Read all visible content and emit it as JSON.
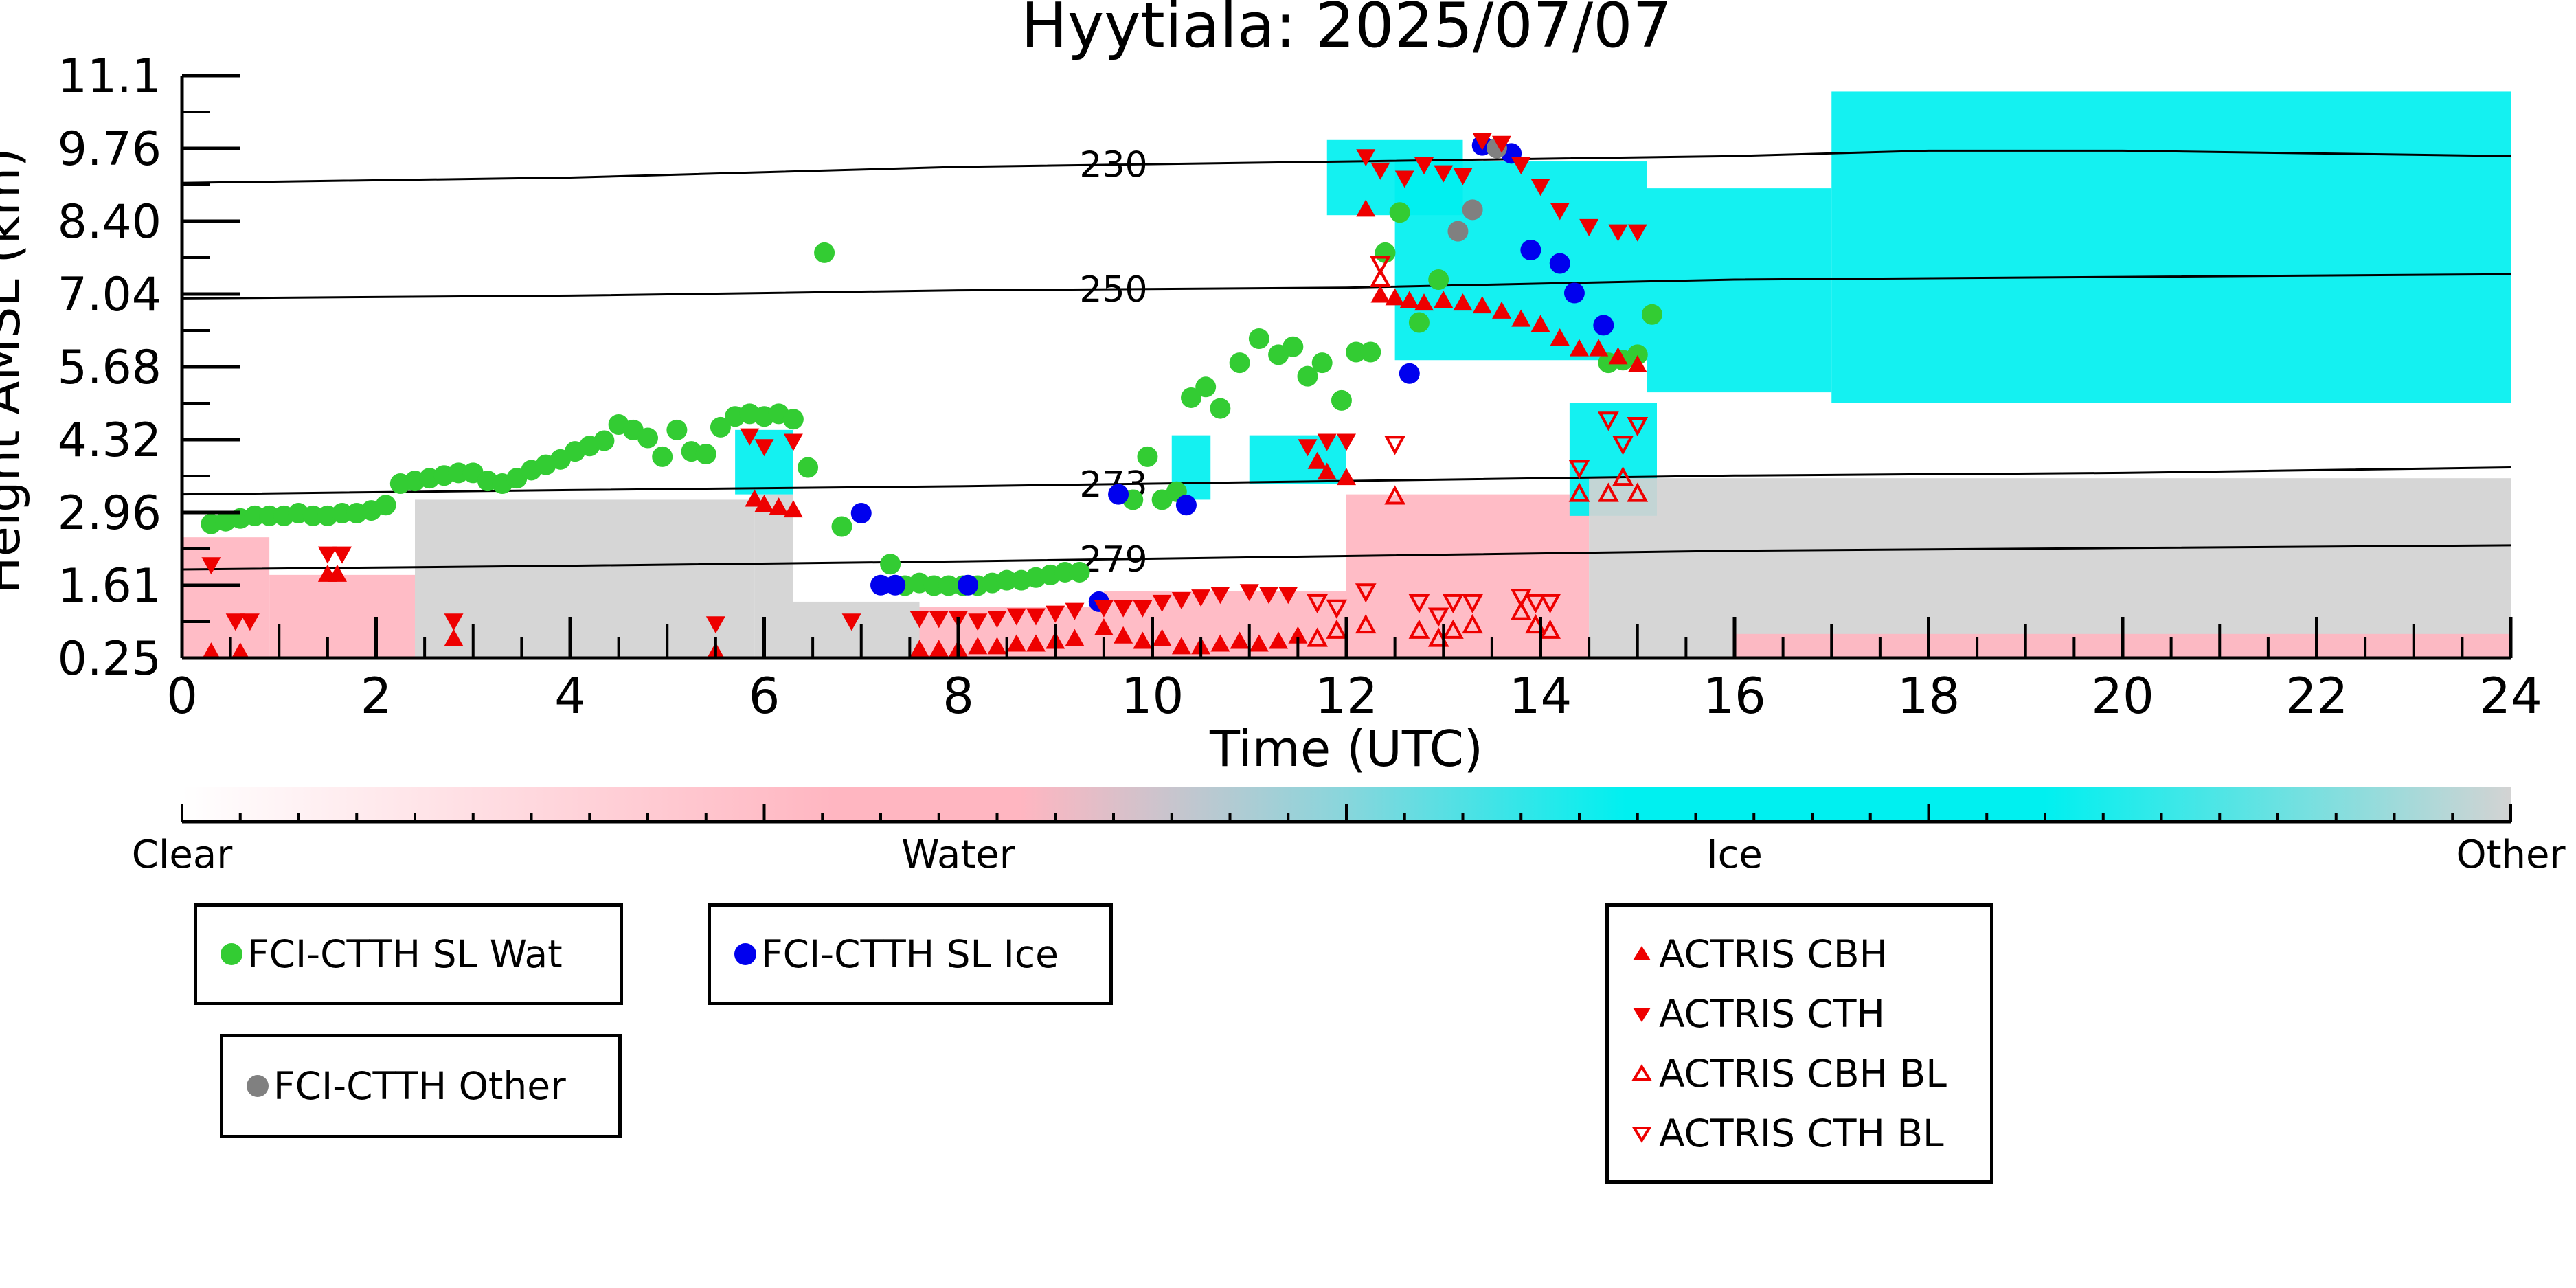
{
  "chart_data": {
    "type": "scatter",
    "title": "Hyytiala: 2025/07/07",
    "xlabel": "Time (UTC)",
    "ylabel": "Height AMSL (km)",
    "xlim": [
      0,
      24
    ],
    "ylim": [
      0.25,
      11.1
    ],
    "x_ticks": [
      "0",
      "2",
      "4",
      "6",
      "8",
      "10",
      "12",
      "14",
      "16",
      "18",
      "20",
      "22",
      "24"
    ],
    "y_ticks": [
      "0.25",
      "1.61",
      "2.96",
      "4.32",
      "5.68",
      "7.04",
      "8.40",
      "9.76",
      "11.1"
    ],
    "colorbar": {
      "labels": [
        "Clear",
        "Water",
        "Ice",
        "Other"
      ],
      "colors": [
        "#ffffff",
        "#ffb6c1",
        "#00f0f0",
        "#d3d3d3"
      ]
    },
    "isotherms": [
      {
        "label": "230",
        "x": [
          0,
          4,
          8,
          12,
          16,
          18,
          20,
          24
        ],
        "y": [
          9.1,
          9.2,
          9.4,
          9.5,
          9.6,
          9.7,
          9.7,
          9.6
        ]
      },
      {
        "label": "250",
        "x": [
          0,
          4,
          8,
          12,
          16,
          20,
          24
        ],
        "y": [
          6.95,
          7.0,
          7.1,
          7.15,
          7.3,
          7.35,
          7.4
        ]
      },
      {
        "label": "273",
        "x": [
          0,
          4,
          8,
          12,
          16,
          20,
          24
        ],
        "y": [
          3.3,
          3.38,
          3.45,
          3.55,
          3.65,
          3.7,
          3.8
        ]
      },
      {
        "label": "279",
        "x": [
          0,
          4,
          8,
          12,
          16,
          20,
          24
        ],
        "y": [
          1.9,
          1.97,
          2.05,
          2.15,
          2.25,
          2.3,
          2.35
        ]
      }
    ],
    "cloud_regions": [
      {
        "class": "Water",
        "x": [
          0.0,
          0.9
        ],
        "y": [
          0.25,
          2.5
        ]
      },
      {
        "class": "Water",
        "x": [
          0.9,
          2.4
        ],
        "y": [
          0.25,
          1.8
        ]
      },
      {
        "class": "Other",
        "x": [
          2.4,
          5.9
        ],
        "y": [
          0.25,
          3.2
        ]
      },
      {
        "class": "Other",
        "x": [
          5.9,
          6.3
        ],
        "y": [
          0.25,
          3.3
        ]
      },
      {
        "class": "Ice",
        "x": [
          5.7,
          6.3
        ],
        "y": [
          3.3,
          4.5
        ]
      },
      {
        "class": "Other",
        "x": [
          6.3,
          7.6
        ],
        "y": [
          0.25,
          1.3
        ]
      },
      {
        "class": "Water",
        "x": [
          7.6,
          9.5
        ],
        "y": [
          0.25,
          1.2
        ]
      },
      {
        "class": "Water",
        "x": [
          9.5,
          12.0
        ],
        "y": [
          0.25,
          1.5
        ]
      },
      {
        "class": "Ice",
        "x": [
          10.2,
          10.6
        ],
        "y": [
          3.2,
          4.4
        ]
      },
      {
        "class": "Ice",
        "x": [
          11.0,
          12.0
        ],
        "y": [
          3.5,
          4.4
        ]
      },
      {
        "class": "Water",
        "x": [
          12.0,
          14.5
        ],
        "y": [
          0.25,
          3.3
        ]
      },
      {
        "class": "Ice",
        "x": [
          11.8,
          13.2
        ],
        "y": [
          8.5,
          9.9
        ]
      },
      {
        "class": "Ice",
        "x": [
          12.5,
          15.1
        ],
        "y": [
          5.8,
          9.5
        ]
      },
      {
        "class": "Ice",
        "x": [
          15.1,
          17.0
        ],
        "y": [
          5.2,
          9.0
        ]
      },
      {
        "class": "Ice",
        "x": [
          17.0,
          24.0
        ],
        "y": [
          5.0,
          10.8
        ]
      },
      {
        "class": "Ice",
        "x": [
          14.3,
          15.2
        ],
        "y": [
          2.9,
          5.0
        ]
      },
      {
        "class": "Other",
        "x": [
          14.5,
          24.0
        ],
        "y": [
          0.25,
          3.6
        ]
      },
      {
        "class": "Water",
        "x": [
          16.0,
          24.0
        ],
        "y": [
          0.25,
          0.7
        ]
      }
    ],
    "series": [
      {
        "name": "FCI-CTTH SL Wat",
        "color": "#33cc33",
        "marker": "circle",
        "x": [
          0.3,
          0.45,
          0.6,
          0.75,
          0.9,
          1.05,
          1.2,
          1.35,
          1.5,
          1.65,
          1.8,
          1.95,
          2.1,
          2.25,
          2.4,
          2.55,
          2.7,
          2.85,
          3.0,
          3.15,
          3.3,
          3.45,
          3.6,
          3.75,
          3.9,
          4.05,
          4.2,
          4.35,
          4.5,
          4.65,
          4.8,
          4.95,
          5.1,
          5.25,
          5.4,
          5.55,
          5.7,
          5.85,
          6.0,
          6.15,
          6.3,
          6.45,
          6.62,
          6.8,
          7.3,
          7.45,
          7.6,
          7.75,
          7.9,
          8.05,
          8.2,
          8.35,
          8.5,
          8.65,
          8.8,
          8.95,
          9.1,
          9.25,
          9.8,
          9.95,
          10.1,
          10.25,
          10.4,
          10.55,
          10.7,
          10.9,
          11.1,
          11.3,
          11.45,
          11.6,
          11.75,
          11.95,
          12.1,
          12.25,
          12.4,
          12.55,
          12.75,
          12.95,
          14.7,
          14.85,
          15.0,
          15.15
        ],
        "y": [
          2.75,
          2.8,
          2.85,
          2.9,
          2.9,
          2.9,
          2.95,
          2.9,
          2.9,
          2.95,
          2.95,
          3.0,
          3.1,
          3.5,
          3.55,
          3.6,
          3.65,
          3.7,
          3.7,
          3.55,
          3.5,
          3.6,
          3.75,
          3.85,
          3.95,
          4.1,
          4.2,
          4.3,
          4.6,
          4.5,
          4.35,
          4.0,
          4.5,
          4.1,
          4.05,
          4.55,
          4.75,
          4.8,
          4.75,
          4.8,
          4.7,
          3.8,
          7.8,
          2.7,
          2.0,
          1.6,
          1.65,
          1.6,
          1.6,
          1.6,
          1.6,
          1.65,
          1.7,
          1.7,
          1.75,
          1.8,
          1.85,
          1.85,
          3.2,
          4.0,
          3.2,
          3.35,
          5.1,
          5.3,
          4.9,
          5.75,
          6.2,
          5.9,
          6.05,
          5.5,
          5.75,
          5.05,
          5.95,
          5.95,
          7.8,
          8.55,
          6.5,
          7.3,
          5.75,
          5.8,
          5.9,
          6.65
        ]
      },
      {
        "name": "FCI-CTTH SL Ice",
        "color": "#0000ee",
        "marker": "circle",
        "x": [
          7.0,
          7.2,
          7.35,
          8.1,
          9.45,
          9.65,
          10.35,
          12.65,
          13.4,
          13.7,
          13.9,
          14.2,
          14.35,
          14.65
        ],
        "y": [
          2.95,
          1.61,
          1.61,
          1.61,
          1.3,
          3.3,
          3.1,
          5.55,
          9.8,
          9.65,
          7.85,
          7.6,
          7.05,
          6.45
        ]
      },
      {
        "name": "FCI-CTTH Other",
        "color": "#808080",
        "marker": "circle",
        "x": [
          13.15,
          13.3,
          13.55
        ],
        "y": [
          8.2,
          8.6,
          9.75
        ]
      },
      {
        "name": "ACTRIS CBH",
        "color": "#ee0000",
        "marker": "triangle-up",
        "x": [
          0.3,
          0.6,
          1.5,
          1.6,
          2.8,
          5.5,
          5.9,
          6.0,
          6.15,
          6.3,
          7.6,
          7.8,
          8.0,
          8.2,
          8.4,
          8.6,
          8.8,
          9.0,
          9.2,
          9.5,
          9.7,
          9.9,
          10.1,
          10.3,
          10.5,
          10.7,
          10.9,
          11.1,
          11.3,
          11.5,
          11.7,
          11.8,
          12.0,
          12.2,
          12.35,
          12.5,
          12.65,
          12.8,
          13.0,
          13.2,
          13.4,
          13.6,
          13.8,
          14.0,
          14.2,
          14.4,
          14.6,
          14.8,
          15.0
        ],
        "y": [
          0.35,
          0.35,
          1.8,
          1.8,
          0.6,
          0.35,
          3.2,
          3.1,
          3.05,
          3.0,
          0.4,
          0.4,
          0.4,
          0.45,
          0.45,
          0.5,
          0.5,
          0.55,
          0.6,
          0.8,
          0.65,
          0.55,
          0.6,
          0.45,
          0.45,
          0.5,
          0.55,
          0.5,
          0.55,
          0.65,
          3.9,
          3.7,
          3.6,
          8.6,
          7.0,
          6.95,
          6.9,
          6.85,
          6.9,
          6.85,
          6.8,
          6.7,
          6.55,
          6.45,
          6.2,
          6.0,
          6.0,
          5.85,
          5.7
        ]
      },
      {
        "name": "ACTRIS CTH",
        "color": "#ee0000",
        "marker": "triangle-down",
        "x": [
          0.3,
          0.55,
          0.7,
          1.5,
          1.65,
          2.8,
          5.5,
          5.85,
          6.0,
          6.3,
          6.9,
          7.6,
          7.8,
          8.0,
          8.2,
          8.4,
          8.6,
          8.8,
          9.0,
          9.2,
          9.5,
          9.7,
          9.9,
          10.1,
          10.3,
          10.5,
          10.7,
          11.0,
          11.2,
          11.4,
          11.6,
          11.8,
          12.0,
          12.2,
          12.35,
          12.6,
          12.8,
          13.0,
          13.2,
          13.4,
          13.6,
          13.8,
          14.0,
          14.2,
          14.5,
          14.8,
          15.0
        ],
        "y": [
          2.0,
          0.95,
          0.95,
          2.2,
          2.2,
          0.95,
          0.9,
          4.4,
          4.2,
          4.3,
          0.95,
          1.0,
          1.0,
          1.0,
          0.95,
          1.0,
          1.05,
          1.05,
          1.1,
          1.15,
          1.2,
          1.2,
          1.2,
          1.3,
          1.35,
          1.4,
          1.45,
          1.5,
          1.45,
          1.45,
          4.2,
          4.3,
          4.3,
          9.6,
          9.35,
          9.2,
          9.45,
          9.3,
          9.25,
          9.9,
          9.85,
          9.45,
          9.05,
          8.6,
          8.3,
          8.2,
          8.2
        ]
      },
      {
        "name": "ACTRIS CBH BL",
        "color": "#ee0000",
        "marker": "triangle-up-open",
        "x": [
          11.7,
          11.9,
          12.2,
          12.35,
          12.5,
          12.75,
          12.95,
          13.1,
          13.3,
          13.8,
          13.95,
          14.1,
          14.4,
          14.7,
          14.85,
          15.0
        ],
        "y": [
          0.6,
          0.75,
          0.85,
          7.3,
          3.25,
          0.75,
          0.6,
          0.75,
          0.85,
          1.1,
          0.85,
          0.75,
          3.3,
          3.3,
          3.6,
          3.3
        ]
      },
      {
        "name": "ACTRIS CTH BL",
        "color": "#ee0000",
        "marker": "triangle-down-open",
        "x": [
          11.7,
          11.9,
          12.2,
          12.35,
          12.5,
          12.75,
          12.95,
          13.1,
          13.3,
          13.8,
          13.95,
          14.1,
          14.4,
          14.7,
          14.85,
          15.0
        ],
        "y": [
          1.3,
          1.2,
          1.5,
          7.6,
          4.25,
          1.3,
          1.05,
          1.3,
          1.3,
          1.4,
          1.3,
          1.3,
          3.8,
          4.7,
          4.25,
          4.6
        ]
      }
    ]
  },
  "legend": {
    "group1": [
      "FCI-CTTH SL Wat"
    ],
    "group2": [
      "FCI-CTTH SL Ice"
    ],
    "group3": [
      "FCI-CTTH Other"
    ],
    "group4": [
      "ACTRIS CBH",
      "ACTRIS CTH",
      "ACTRIS CBH BL",
      "ACTRIS CTH BL"
    ]
  }
}
